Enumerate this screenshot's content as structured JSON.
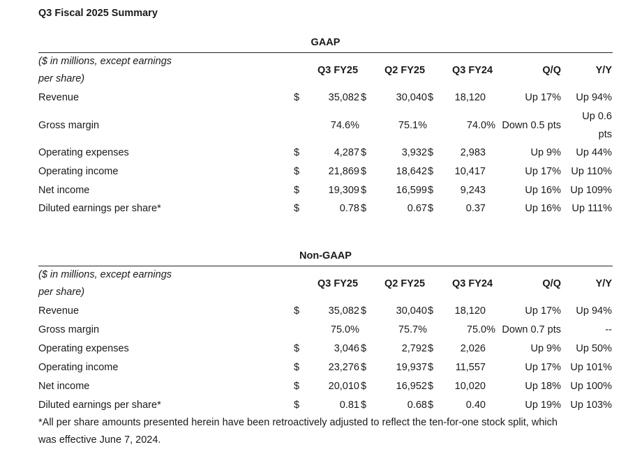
{
  "title": "Q3 Fiscal 2025 Summary",
  "sections": [
    {
      "heading": "GAAP",
      "label_line1": "($ in millions, except earnings",
      "label_line2": "per share)",
      "columns": [
        "Q3 FY25",
        "Q2 FY25",
        "Q3 FY24",
        "Q/Q",
        "Y/Y"
      ],
      "rows": [
        {
          "label": "Revenue",
          "dollar": true,
          "q3fy25": "35,082",
          "q2fy25": "30,040",
          "q3fy24": "18,120",
          "qq": "Up 17%",
          "yy": "Up 94%"
        },
        {
          "label": "Gross margin",
          "dollar": false,
          "q3fy25": "74.6%",
          "q2fy25": "75.1%",
          "q3fy24": "74.0%",
          "qq": "Down 0.5 pts",
          "yy": "Up 0.6",
          "yy2": "pts"
        },
        {
          "label": "Operating expenses",
          "dollar": true,
          "q3fy25": "4,287",
          "q2fy25": "3,932",
          "q3fy24": "2,983",
          "qq": "Up 9%",
          "yy": "Up 44%"
        },
        {
          "label": "Operating income",
          "dollar": true,
          "q3fy25": "21,869",
          "q2fy25": "18,642",
          "q3fy24": "10,417",
          "qq": "Up 17%",
          "yy": "Up 110%"
        },
        {
          "label": "Net income",
          "dollar": true,
          "q3fy25": "19,309",
          "q2fy25": "16,599",
          "q3fy24": "9,243",
          "qq": "Up 16%",
          "yy": "Up 109%"
        },
        {
          "label": "Diluted earnings per share*",
          "dollar": true,
          "q3fy25": "0.78",
          "q2fy25": "0.67",
          "q3fy24": "0.37",
          "qq": "Up 16%",
          "yy": "Up 111%"
        }
      ]
    },
    {
      "heading": "Non-GAAP",
      "label_line1": "($ in millions, except earnings",
      "label_line2": "per share)",
      "columns": [
        "Q3 FY25",
        "Q2 FY25",
        "Q3 FY24",
        "Q/Q",
        "Y/Y"
      ],
      "rows": [
        {
          "label": "Revenue",
          "dollar": true,
          "q3fy25": "35,082",
          "q2fy25": "30,040",
          "q3fy24": "18,120",
          "qq": "Up 17%",
          "yy": "Up 94%"
        },
        {
          "label": "Gross margin",
          "dollar": false,
          "q3fy25": "75.0%",
          "q2fy25": "75.7%",
          "q3fy24": "75.0%",
          "qq": "Down 0.7 pts",
          "yy": "--"
        },
        {
          "label": "Operating expenses",
          "dollar": true,
          "q3fy25": "3,046",
          "q2fy25": "2,792",
          "q3fy24": "2,026",
          "qq": "Up 9%",
          "yy": "Up 50%"
        },
        {
          "label": "Operating income",
          "dollar": true,
          "q3fy25": "23,276",
          "q2fy25": "19,937",
          "q3fy24": "11,557",
          "qq": "Up 17%",
          "yy": "Up 101%"
        },
        {
          "label": "Net income",
          "dollar": true,
          "q3fy25": "20,010",
          "q2fy25": "16,952",
          "q3fy24": "10,020",
          "qq": "Up 18%",
          "yy": "Up 100%"
        },
        {
          "label": "Diluted earnings per share*",
          "dollar": true,
          "q3fy25": "0.81",
          "q2fy25": "0.68",
          "q3fy24": "0.40",
          "qq": "Up 19%",
          "yy": "Up 103%"
        }
      ]
    }
  ],
  "currency_symbol": "$",
  "footnote_line1": "*All per share amounts presented herein have been retroactively adjusted to reflect the ten-for-one stock split, which",
  "footnote_line2": "was effective June 7, 2024."
}
